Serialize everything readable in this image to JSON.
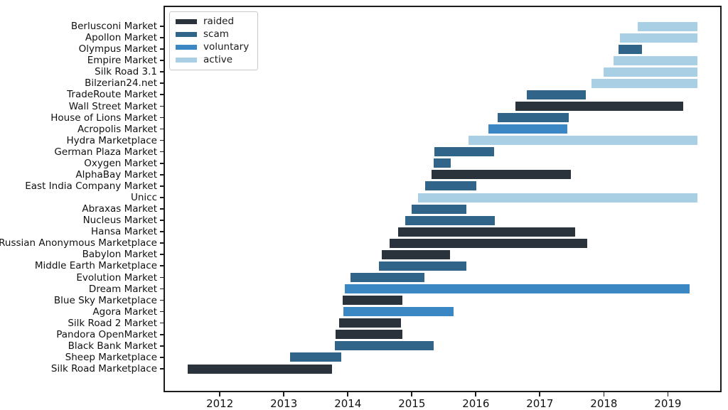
{
  "chart_data": {
    "type": "gantt",
    "title": "",
    "grid": false,
    "legend": {
      "position": "upper-left",
      "entries": [
        {
          "label": "raided",
          "color": "#2a323c"
        },
        {
          "label": "scam",
          "color": "#306489"
        },
        {
          "label": "voluntary",
          "color": "#3b87c4"
        },
        {
          "label": "active",
          "color": "#a9cfe5"
        }
      ]
    },
    "x_axis": {
      "ticks": [
        "2012",
        "2013",
        "2014",
        "2015",
        "2016",
        "2017",
        "2018",
        "2019"
      ],
      "tick_values": [
        2012,
        2013,
        2014,
        2015,
        2016,
        2017,
        2018,
        2019
      ],
      "range": [
        2011.12,
        2019.84
      ]
    },
    "series": [
      {
        "name": "Berlusconi Market",
        "status": "active",
        "start": 2018.51,
        "end": 2019.44
      },
      {
        "name": "Apollon Market",
        "status": "active",
        "start": 2018.23,
        "end": 2019.44
      },
      {
        "name": "Olympus Market",
        "status": "scam",
        "start": 2018.21,
        "end": 2018.57
      },
      {
        "name": "Empire Market",
        "status": "active",
        "start": 2018.13,
        "end": 2019.44
      },
      {
        "name": "Silk Road 3.1",
        "status": "active",
        "start": 2017.97,
        "end": 2019.44
      },
      {
        "name": "Bilzerian24.net",
        "status": "active",
        "start": 2017.78,
        "end": 2019.44
      },
      {
        "name": "TradeRoute Market",
        "status": "scam",
        "start": 2016.77,
        "end": 2017.7
      },
      {
        "name": "Wall Street Market",
        "status": "raided",
        "start": 2016.6,
        "end": 2019.22
      },
      {
        "name": "House of Lions Market",
        "status": "scam",
        "start": 2016.32,
        "end": 2017.43
      },
      {
        "name": "Acropolis Market",
        "status": "voluntary",
        "start": 2016.17,
        "end": 2017.41
      },
      {
        "name": "Hydra Marketplace",
        "status": "active",
        "start": 2015.86,
        "end": 2019.44
      },
      {
        "name": "German Plaza Market",
        "status": "scam",
        "start": 2015.33,
        "end": 2016.26
      },
      {
        "name": "Oxygen Market",
        "status": "scam",
        "start": 2015.32,
        "end": 2015.59
      },
      {
        "name": "AlphaBay Market",
        "status": "raided",
        "start": 2015.29,
        "end": 2017.46
      },
      {
        "name": "East India Company Market",
        "status": "scam",
        "start": 2015.18,
        "end": 2015.99
      },
      {
        "name": "Unicc",
        "status": "active",
        "start": 2015.07,
        "end": 2019.44
      },
      {
        "name": "Abraxas Market",
        "status": "scam",
        "start": 2014.97,
        "end": 2015.83
      },
      {
        "name": "Nucleus Market",
        "status": "scam",
        "start": 2014.87,
        "end": 2016.27
      },
      {
        "name": "Hansa Market",
        "status": "raided",
        "start": 2014.76,
        "end": 2017.53
      },
      {
        "name": "Russian Anonymous Marketplace",
        "status": "raided",
        "start": 2014.63,
        "end": 2017.72
      },
      {
        "name": "Babylon Market",
        "status": "raided",
        "start": 2014.51,
        "end": 2015.57
      },
      {
        "name": "Middle Earth Marketplace",
        "status": "scam",
        "start": 2014.46,
        "end": 2015.83
      },
      {
        "name": "Evolution Market",
        "status": "scam",
        "start": 2014.02,
        "end": 2015.18
      },
      {
        "name": "Dream Market",
        "status": "voluntary",
        "start": 2013.93,
        "end": 2019.32
      },
      {
        "name": "Blue Sky Marketplace",
        "status": "raided",
        "start": 2013.9,
        "end": 2014.83
      },
      {
        "name": "Agora Market",
        "status": "voluntary",
        "start": 2013.91,
        "end": 2015.63
      },
      {
        "name": "Silk Road 2 Market",
        "status": "raided",
        "start": 2013.84,
        "end": 2014.81
      },
      {
        "name": "Pandora OpenMarket",
        "status": "raided",
        "start": 2013.79,
        "end": 2014.83
      },
      {
        "name": "Black Bank Market",
        "status": "scam",
        "start": 2013.77,
        "end": 2015.32
      },
      {
        "name": "Sheep Marketplace",
        "status": "scam",
        "start": 2013.07,
        "end": 2013.88
      },
      {
        "name": "Silk Road Marketplace",
        "status": "raided",
        "start": 2011.47,
        "end": 2013.73
      }
    ]
  },
  "colors": {
    "background": "#ffffff",
    "frame": "#1b1b1b",
    "text": "#111111",
    "legend_border": "#c9c9c9"
  }
}
